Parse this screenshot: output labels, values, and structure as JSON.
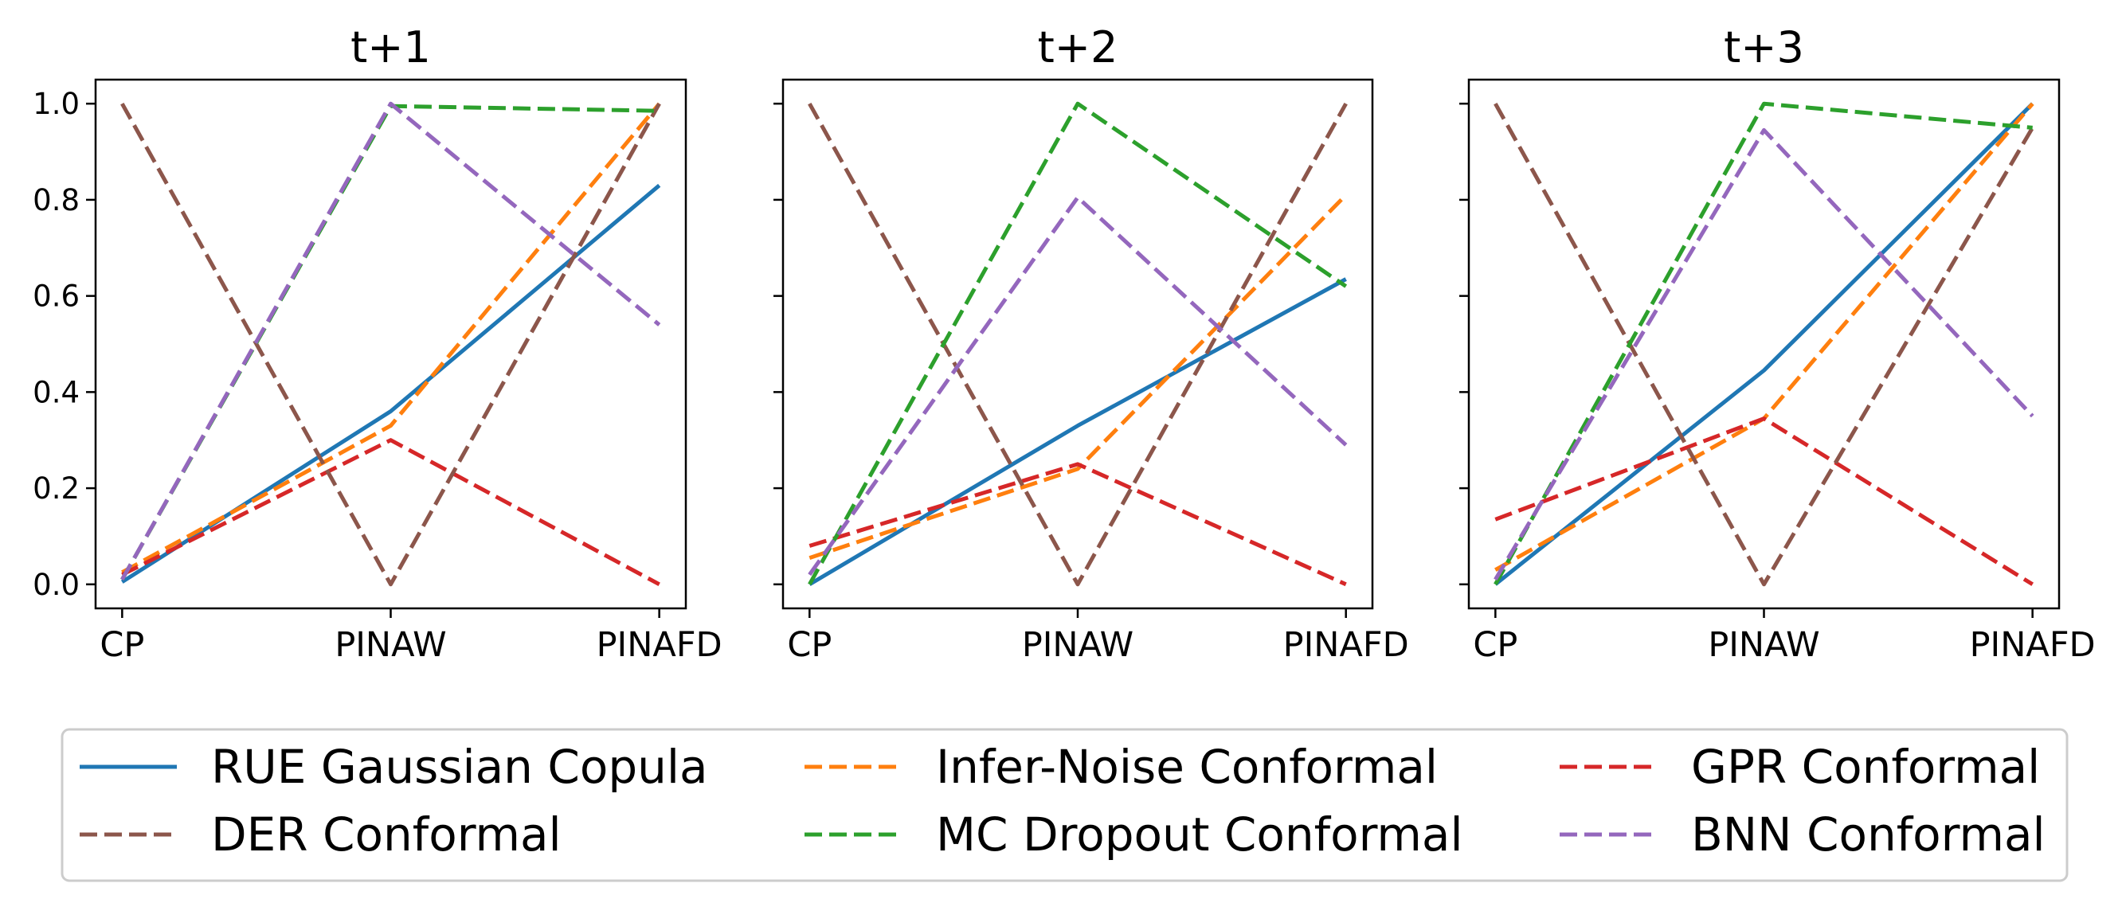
{
  "chart_data": [
    {
      "type": "line",
      "title": "t+1",
      "categories": [
        "CP",
        "PINAW",
        "PINAFD"
      ],
      "ylim": [
        -0.05,
        1.05
      ],
      "yticks": [
        "0.0",
        "0.2",
        "0.4",
        "0.6",
        "0.8",
        "1.0"
      ],
      "series": [
        {
          "name": "RUE Gaussian Copula",
          "values": [
            0.005,
            0.36,
            0.83
          ]
        },
        {
          "name": "Infer-Noise Conformal",
          "values": [
            0.025,
            0.33,
            1.0
          ]
        },
        {
          "name": "GPR Conformal",
          "values": [
            0.02,
            0.3,
            0.0
          ]
        },
        {
          "name": "DER Conformal",
          "values": [
            1.0,
            0.0,
            1.0
          ]
        },
        {
          "name": "MC Dropout Conformal",
          "values": [
            0.01,
            0.995,
            0.985
          ]
        },
        {
          "name": "BNN Conformal",
          "values": [
            0.01,
            1.0,
            0.54
          ]
        }
      ]
    },
    {
      "type": "line",
      "title": "t+2",
      "categories": [
        "CP",
        "PINAW",
        "PINAFD"
      ],
      "ylim": [
        -0.05,
        1.05
      ],
      "series": [
        {
          "name": "RUE Gaussian Copula",
          "values": [
            0.0,
            0.33,
            0.635
          ]
        },
        {
          "name": "Infer-Noise Conformal",
          "values": [
            0.055,
            0.24,
            0.81
          ]
        },
        {
          "name": "GPR Conformal",
          "values": [
            0.08,
            0.25,
            0.0
          ]
        },
        {
          "name": "DER Conformal",
          "values": [
            1.0,
            0.0,
            1.0
          ]
        },
        {
          "name": "MC Dropout Conformal",
          "values": [
            0.0,
            1.0,
            0.62
          ]
        },
        {
          "name": "BNN Conformal",
          "values": [
            0.02,
            0.805,
            0.29
          ]
        }
      ]
    },
    {
      "type": "line",
      "title": "t+3",
      "categories": [
        "CP",
        "PINAW",
        "PINAFD"
      ],
      "ylim": [
        -0.05,
        1.05
      ],
      "series": [
        {
          "name": "RUE Gaussian Copula",
          "values": [
            0.0,
            0.445,
            1.0
          ]
        },
        {
          "name": "Infer-Noise Conformal",
          "values": [
            0.03,
            0.345,
            1.0
          ]
        },
        {
          "name": "GPR Conformal",
          "values": [
            0.135,
            0.345,
            0.0
          ]
        },
        {
          "name": "DER Conformal",
          "values": [
            1.0,
            0.0,
            0.95
          ]
        },
        {
          "name": "MC Dropout Conformal",
          "values": [
            0.0,
            1.0,
            0.95
          ]
        },
        {
          "name": "BNN Conformal",
          "values": [
            0.01,
            0.945,
            0.35
          ]
        }
      ]
    }
  ],
  "colors": {
    "RUE Gaussian Copula": "#1f77b4",
    "Infer-Noise Conformal": "#ff7f0e",
    "GPR Conformal": "#d62728",
    "DER Conformal": "#8c564b",
    "MC Dropout Conformal": "#2ca02c",
    "BNN Conformal": "#9467bd"
  },
  "styles": {
    "RUE Gaussian Copula": "solid",
    "Infer-Noise Conformal": "dashed",
    "GPR Conformal": "dashed",
    "DER Conformal": "dashed",
    "MC Dropout Conformal": "dashed",
    "BNN Conformal": "dashed"
  },
  "legend": {
    "placement": "bottom",
    "columns": [
      [
        "RUE Gaussian Copula",
        "DER Conformal"
      ],
      [
        "Infer-Noise Conformal",
        "MC Dropout Conformal"
      ],
      [
        "GPR Conformal",
        "BNN Conformal"
      ]
    ]
  }
}
